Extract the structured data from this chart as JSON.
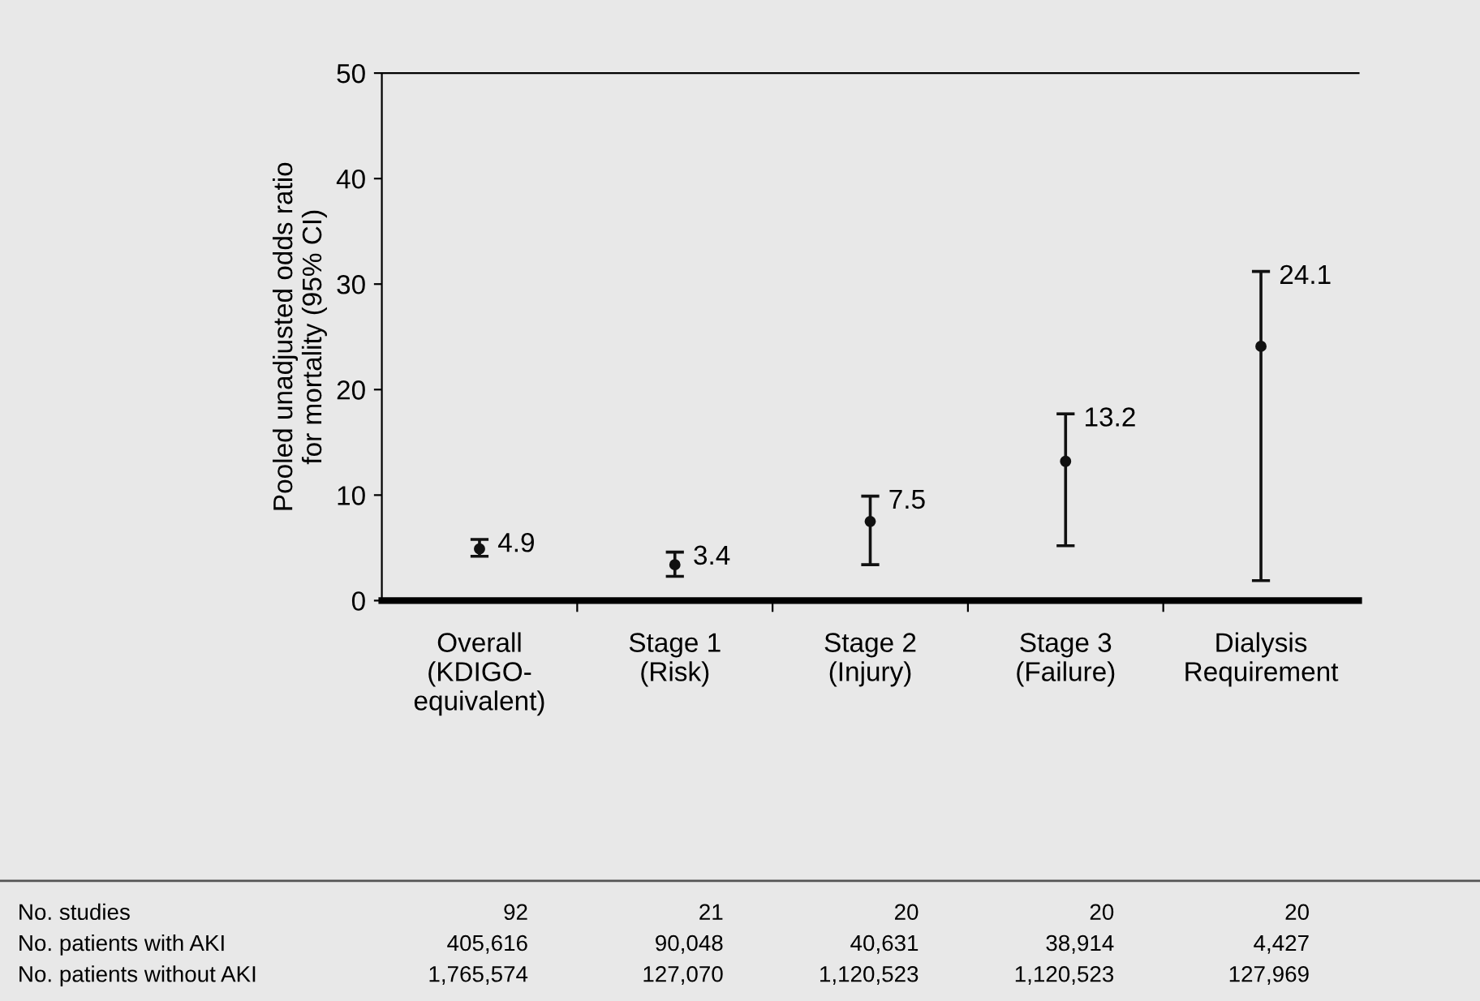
{
  "chart_data": {
    "type": "scatter",
    "ylabel": "Pooled unadjusted odds ratio\nfor mortality (95% CI)",
    "categories": [
      "Overall\n(KDIGO-\nequivalent)",
      "Stage 1\n(Risk)",
      "Stage 2\n(Injury)",
      "Stage 3\n(Failure)",
      "Dialysis\nRequirement"
    ],
    "values": [
      4.9,
      3.4,
      7.5,
      13.2,
      24.1
    ],
    "errors": [
      [
        4.2,
        5.8
      ],
      [
        2.3,
        4.6
      ],
      [
        3.4,
        9.9
      ],
      [
        5.2,
        17.7
      ],
      [
        1.9,
        31.2
      ]
    ],
    "color": "#111111",
    "marker": "circle",
    "data_labels": true,
    "ylim": [
      0,
      50
    ],
    "yticks": [
      0,
      10,
      20,
      30,
      40,
      50
    ],
    "grid": false,
    "annotations": [
      "No. studies",
      "92",
      "21",
      "20",
      "20",
      "20",
      "No. patients with AKI",
      "405,616",
      "90,048",
      "40,631",
      "38,914",
      "4,427",
      "No. patients without AKI",
      "1,765,574",
      "127,070",
      "1,120,523",
      "1,120,523",
      "127,969"
    ]
  }
}
